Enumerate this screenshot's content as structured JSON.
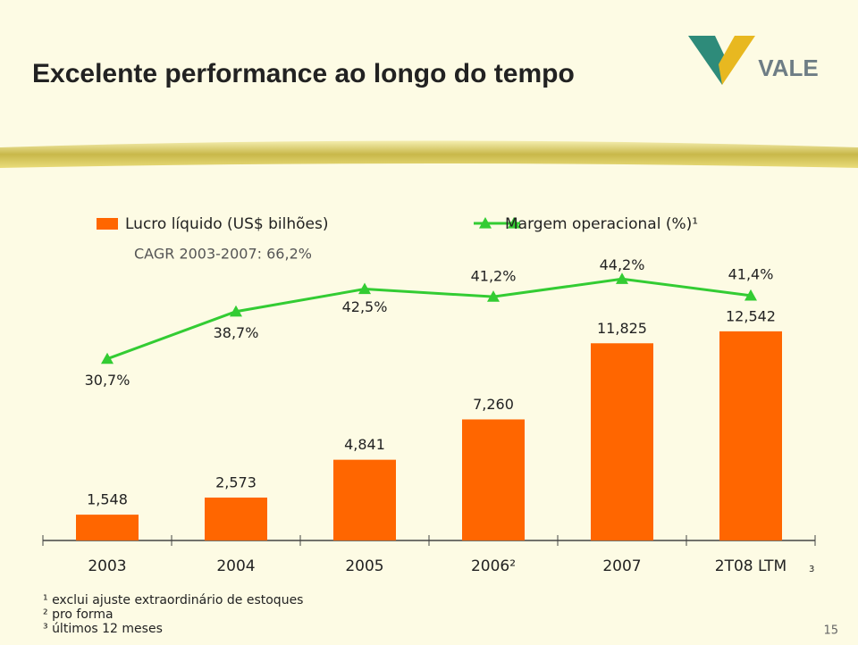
{
  "header": {
    "title": "Excelente performance ao longo do tempo",
    "logo": "VALE"
  },
  "chart_data": {
    "type": "combo",
    "subtitle": "CAGR 2003-2007: 66,2%",
    "categories": [
      "2003",
      "2004",
      "2005",
      "2006²",
      "2007",
      "2T08 LTM"
    ],
    "category_note": "3",
    "ylim": [
      0,
      15
    ],
    "y2lim": [
      0,
      45
    ],
    "series": [
      {
        "name": "Lucro líquido (US$ bilhões)",
        "type": "bar",
        "color": "#ff6600",
        "values": [
          1.548,
          2.573,
          4.841,
          7.26,
          11.825,
          12.542
        ],
        "value_labels": [
          "1,548",
          "2,573",
          "4,841",
          "7,260",
          "11,825",
          "12,542"
        ]
      },
      {
        "name": "Margem operacional (%)¹",
        "type": "line",
        "axis": "y2",
        "color": "#33cc33",
        "values": [
          30.7,
          38.7,
          42.5,
          41.2,
          44.2,
          41.4
        ],
        "value_labels": [
          "30,7%",
          "38,7%",
          "42,5%",
          "41,2%",
          "44,2%",
          "41,4%"
        ]
      }
    ]
  },
  "footnotes": [
    "¹ exclui ajuste extraordinário de estoques",
    "² pro forma",
    "³ últimos 12 meses"
  ],
  "page_number": "15"
}
